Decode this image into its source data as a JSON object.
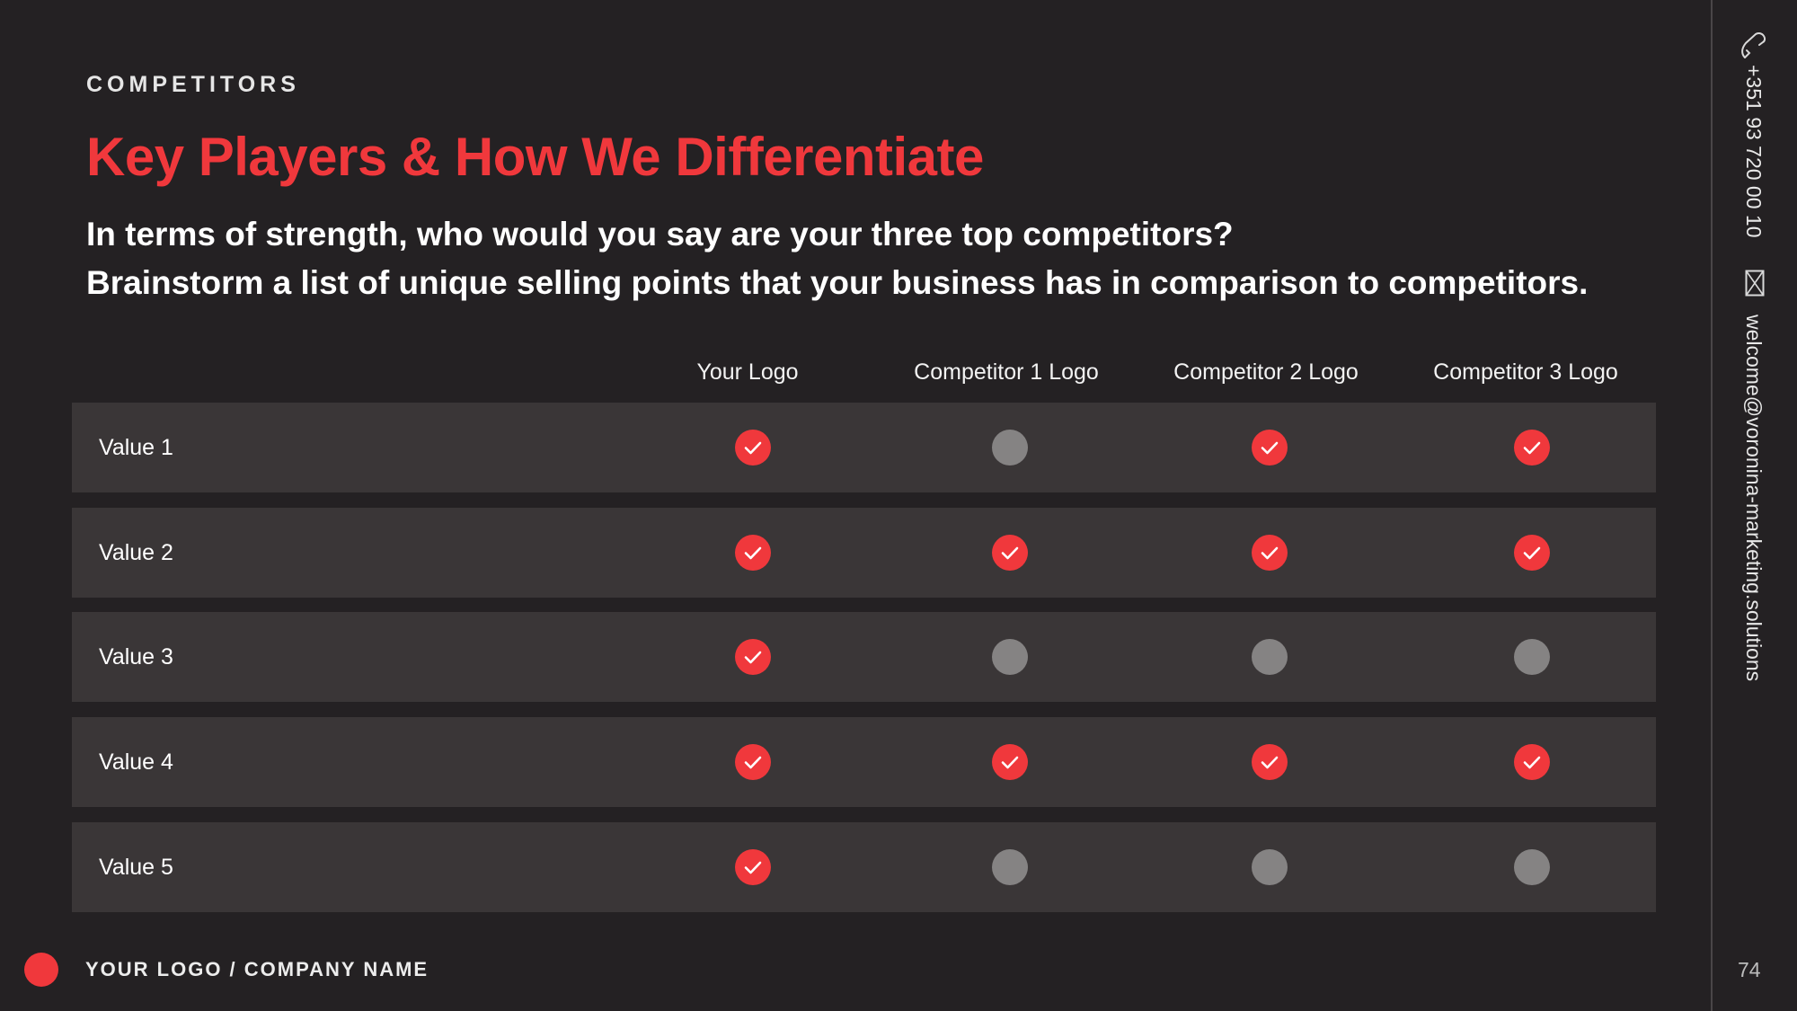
{
  "header": {
    "eyebrow": "COMPETITORS",
    "title": "Key Players & How We Differentiate",
    "subtitle_line1": "In terms of strength, who would you say are your three top competitors?",
    "subtitle_line2": "Brainstorm a list of unique selling points that your business has in comparison to competitors."
  },
  "table": {
    "columns": [
      "Your Logo",
      "Competitor 1 Logo",
      "Competitor 2 Logo",
      "Competitor 3 Logo"
    ],
    "rows": [
      {
        "label": "Value 1",
        "values": [
          true,
          false,
          true,
          true
        ]
      },
      {
        "label": "Value 2",
        "values": [
          true,
          true,
          true,
          true
        ]
      },
      {
        "label": "Value 3",
        "values": [
          true,
          false,
          false,
          false
        ]
      },
      {
        "label": "Value 4",
        "values": [
          true,
          true,
          true,
          true
        ]
      },
      {
        "label": "Value 5",
        "values": [
          true,
          false,
          false,
          false
        ]
      }
    ]
  },
  "sidebar": {
    "phone": "+351 93 720 00 10",
    "email": "welcome@voronina-marketing.solutions",
    "phone_icon": "phone-icon",
    "mail_icon": "mail-icon"
  },
  "footer": {
    "company": "YOUR LOGO / COMPANY NAME",
    "page_number": "74"
  },
  "colors": {
    "accent": "#f0383c",
    "background": "#242123",
    "row": "#3a3637",
    "inactive": "#858383"
  }
}
